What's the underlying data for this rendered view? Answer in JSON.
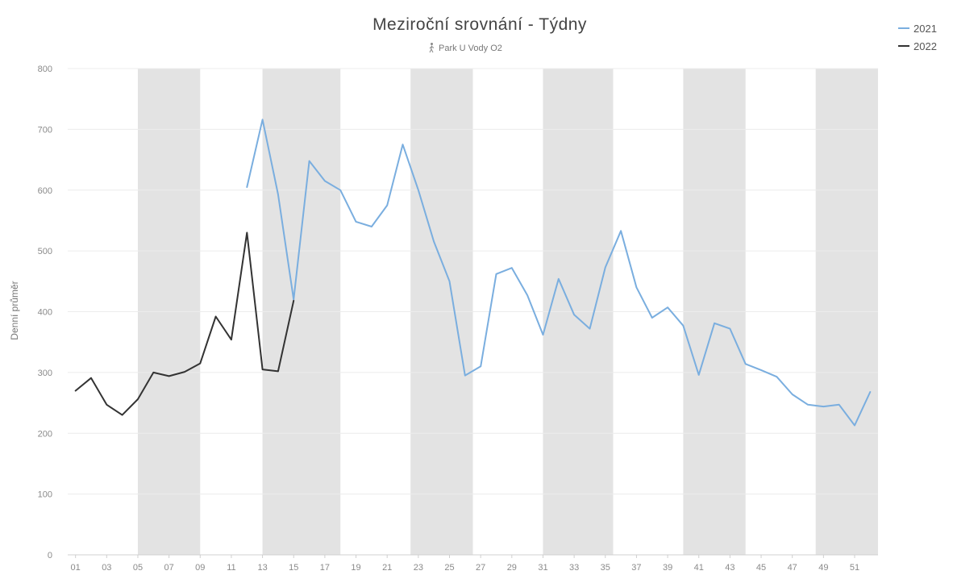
{
  "chart_data": {
    "type": "line",
    "title": "Meziroční srovnání - Týdny",
    "subtitle": "Park U Vody O2",
    "subtitle_icon": "walking-person-icon",
    "xlabel": "",
    "ylabel": "Denní průměr",
    "ylim": [
      0,
      800
    ],
    "yticks": [
      0,
      100,
      200,
      300,
      400,
      500,
      600,
      700,
      800
    ],
    "x_tick_labels": [
      "01",
      "03",
      "05",
      "07",
      "09",
      "11",
      "13",
      "15",
      "17",
      "19",
      "21",
      "23",
      "25",
      "27",
      "29",
      "31",
      "33",
      "35",
      "37",
      "39",
      "41",
      "43",
      "45",
      "47",
      "49",
      "51"
    ],
    "x_range": [
      1,
      52
    ],
    "shaded_bands": [
      [
        5,
        9
      ],
      [
        13,
        18
      ],
      [
        22.5,
        26.5
      ],
      [
        31,
        35.5
      ],
      [
        40,
        44
      ],
      [
        48.5,
        52.5
      ]
    ],
    "band_color": "#e3e3e3",
    "grid": true,
    "legend_position": "top-right",
    "series": [
      {
        "name": "2021",
        "color": "#7aaedf",
        "x": [
          12,
          13,
          14,
          15,
          16,
          17,
          18,
          19,
          20,
          21,
          22,
          23,
          24,
          25,
          26,
          27,
          28,
          29,
          30,
          31,
          32,
          33,
          34,
          35,
          36,
          37,
          38,
          39,
          40,
          41,
          42,
          43,
          44,
          45,
          46,
          47,
          48,
          49,
          50,
          51,
          52
        ],
        "values": [
          605,
          716,
          593,
          420,
          648,
          615,
          600,
          548,
          540,
          575,
          675,
          600,
          515,
          450,
          295,
          310,
          462,
          472,
          427,
          362,
          454,
          395,
          372,
          473,
          533,
          440,
          390,
          407,
          377,
          296,
          381,
          372,
          314,
          304,
          293,
          264,
          247,
          244,
          247,
          213,
          268
        ]
      },
      {
        "name": "2022",
        "color": "#333333",
        "x": [
          1,
          2,
          3,
          4,
          5,
          6,
          7,
          8,
          9,
          10,
          11,
          12,
          13,
          14,
          15
        ],
        "values": [
          270,
          291,
          247,
          230,
          256,
          300,
          294,
          301,
          315,
          392,
          354,
          530,
          305,
          302,
          418
        ]
      }
    ]
  }
}
